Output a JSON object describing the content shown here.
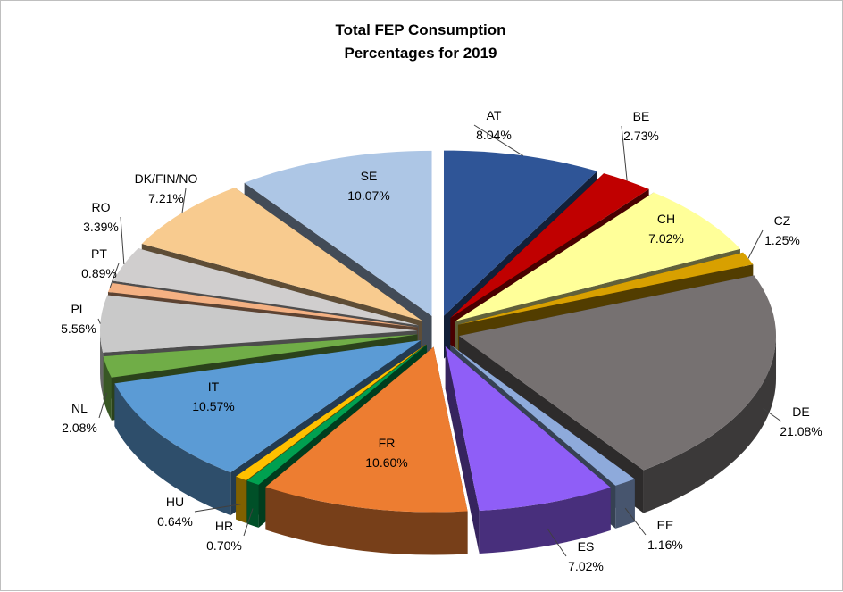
{
  "chart_data": {
    "type": "pie",
    "style": "3d-exploded",
    "title_lines": [
      "Total FEP Consumption",
      "Percentages for 2019"
    ],
    "unit": "%",
    "slices": [
      {
        "name": "AT",
        "value": 8.04,
        "label": "8.04%",
        "color": "#2f5597"
      },
      {
        "name": "BE",
        "value": 2.73,
        "label": "2.73%",
        "color": "#c00000"
      },
      {
        "name": "CH",
        "value": 7.02,
        "label": "7.02%",
        "color": "#ffff99"
      },
      {
        "name": "CZ",
        "value": 1.25,
        "label": "1.25%",
        "color": "#d8a000"
      },
      {
        "name": "DE",
        "value": 21.08,
        "label": "21.08%",
        "color": "#767171"
      },
      {
        "name": "EE",
        "value": 1.16,
        "label": "1.16%",
        "color": "#8eaadb"
      },
      {
        "name": "ES",
        "value": 7.02,
        "label": "7.02%",
        "color": "#8f5ef7"
      },
      {
        "name": "FR",
        "value": 10.6,
        "label": "10.60%",
        "color": "#ed7d31"
      },
      {
        "name": "HR",
        "value": 0.7,
        "label": "0.70%",
        "color": "#00a050"
      },
      {
        "name": "HU",
        "value": 0.64,
        "label": "0.64%",
        "color": "#ffc000"
      },
      {
        "name": "IT",
        "value": 10.57,
        "label": "10.57%",
        "color": "#5b9bd5"
      },
      {
        "name": "NL",
        "value": 2.08,
        "label": "2.08%",
        "color": "#70ad47"
      },
      {
        "name": "PL",
        "value": 5.56,
        "label": "5.56%",
        "color": "#c9c9c9"
      },
      {
        "name": "PT",
        "value": 0.89,
        "label": "0.89%",
        "color": "#f4b183"
      },
      {
        "name": "RO",
        "value": 3.39,
        "label": "3.39%",
        "color": "#d0cece"
      },
      {
        "name": "DK/FIN/NO",
        "value": 7.21,
        "label": "7.21%",
        "color": "#f8cb8f"
      },
      {
        "name": "SE",
        "value": 10.07,
        "label": "10.07%",
        "color": "#adc6e5"
      }
    ]
  }
}
